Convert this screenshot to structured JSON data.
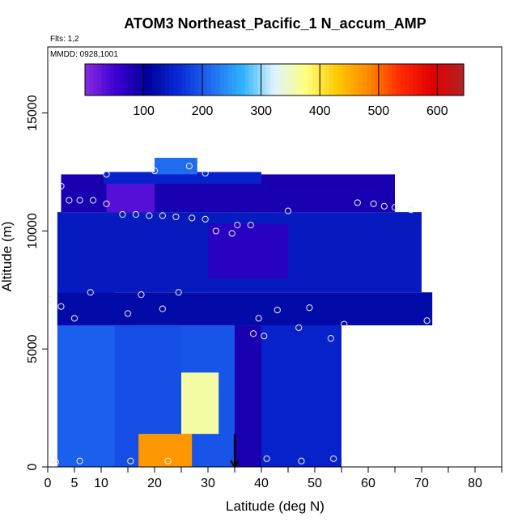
{
  "chart_data": {
    "type": "heatmap",
    "title": "ATOM3 Northeast_Pacific_1 N_accum_AMP",
    "annotations": {
      "flights": "Flts: 1,2",
      "dates": "MMDD: 0928,1001"
    },
    "xlabel": "Latitude (deg N)",
    "ylabel": "Altitude (m)",
    "xlim": [
      0,
      85
    ],
    "ylim": [
      0,
      17800
    ],
    "x_ticks": [
      0,
      5,
      10,
      20,
      30,
      40,
      50,
      60,
      70,
      80
    ],
    "x_minor_ticks": [
      15,
      25,
      35,
      45,
      55,
      65,
      75,
      85
    ],
    "y_ticks": [
      0,
      5000,
      10000,
      15000
    ],
    "colorbar": {
      "range": [
        0,
        645
      ],
      "ticks": [
        100,
        200,
        300,
        400,
        500,
        600
      ],
      "colors": [
        "#8a2be2",
        "#3a00d0",
        "#00009a",
        "#0a2bd8",
        "#1f6cf0",
        "#2fb3ff",
        "#dff4ff",
        "#ffff80",
        "#ffc800",
        "#ff8800",
        "#ff2a00",
        "#e00000",
        "#b22222"
      ]
    },
    "color_scale_max": 645,
    "indicator_arrow": {
      "x": 35,
      "y_top": 700,
      "y_bottom": 0
    },
    "field": [
      {
        "lat": [
          1.8,
          12.5
        ],
        "alt": [
          0,
          7500
        ],
        "value": 205
      },
      {
        "lat": [
          12.5,
          25
        ],
        "alt": [
          0,
          6000
        ],
        "value": 190
      },
      {
        "lat": [
          25,
          35
        ],
        "alt": [
          0,
          6000
        ],
        "value": 195
      },
      {
        "lat": [
          17,
          27
        ],
        "alt": [
          0,
          1400
        ],
        "value": 470
      },
      {
        "lat": [
          25,
          32
        ],
        "alt": [
          1400,
          4000
        ],
        "value": 360
      },
      {
        "lat": [
          35,
          41
        ],
        "alt": [
          0,
          6000
        ],
        "value": 85
      },
      {
        "lat": [
          40,
          55
        ],
        "alt": [
          0,
          6200
        ],
        "value": 150
      },
      {
        "lat": [
          1.8,
          72
        ],
        "alt": [
          6000,
          7400
        ],
        "value": 120
      },
      {
        "lat": [
          1.8,
          70
        ],
        "alt": [
          7400,
          10800
        ],
        "value": 140
      },
      {
        "lat": [
          30,
          45
        ],
        "alt": [
          8000,
          10300
        ],
        "value": 70
      },
      {
        "lat": [
          2.5,
          65
        ],
        "alt": [
          10800,
          12400
        ],
        "value": 85
      },
      {
        "lat": [
          11,
          20
        ],
        "alt": [
          10800,
          12400
        ],
        "value": 35
      },
      {
        "lat": [
          10.5,
          40
        ],
        "alt": [
          12000,
          12500
        ],
        "value": 150
      },
      {
        "lat": [
          20,
          28
        ],
        "alt": [
          12400,
          13100
        ],
        "value": 215
      }
    ],
    "flight_points": [
      [
        0.5,
        7100
      ],
      [
        2.5,
        6800
      ],
      [
        5,
        6300
      ],
      [
        8,
        7400
      ],
      [
        15,
        6500
      ],
      [
        17.5,
        7300
      ],
      [
        21.5,
        6700
      ],
      [
        24.5,
        7400
      ],
      [
        39.5,
        6300
      ],
      [
        43,
        6650
      ],
      [
        49,
        6750
      ],
      [
        55.5,
        6050
      ],
      [
        71,
        6200
      ],
      [
        38.5,
        5650
      ],
      [
        40.5,
        5550
      ],
      [
        47,
        5900
      ],
      [
        53,
        5450
      ],
      [
        1,
        300
      ],
      [
        1.5,
        200
      ],
      [
        6,
        250
      ],
      [
        15.5,
        250
      ],
      [
        22.5,
        250
      ],
      [
        41,
        350
      ],
      [
        47.5,
        250
      ],
      [
        53.5,
        350
      ],
      [
        2.5,
        11900
      ],
      [
        4,
        11300
      ],
      [
        6,
        11300
      ],
      [
        8.5,
        11300
      ],
      [
        11,
        11150
      ],
      [
        14,
        10700
      ],
      [
        16.5,
        10700
      ],
      [
        19,
        10650
      ],
      [
        21.5,
        10650
      ],
      [
        24,
        10600
      ],
      [
        27,
        10550
      ],
      [
        29.5,
        10500
      ],
      [
        31.5,
        10000
      ],
      [
        34.5,
        9900
      ],
      [
        35.5,
        10250
      ],
      [
        38,
        10250
      ],
      [
        45,
        10850
      ],
      [
        58,
        11200
      ],
      [
        61,
        11150
      ],
      [
        63,
        11050
      ],
      [
        65,
        11000
      ],
      [
        68,
        10900
      ],
      [
        11,
        12400
      ],
      [
        20,
        12550
      ],
      [
        26.5,
        12750
      ],
      [
        29.5,
        12450
      ]
    ]
  }
}
